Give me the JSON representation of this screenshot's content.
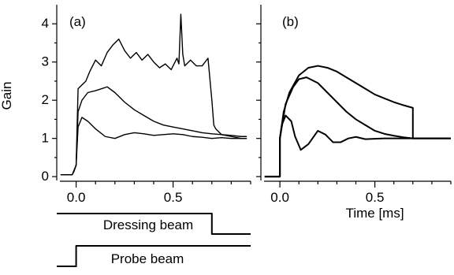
{
  "chart_data": [
    {
      "panel_label": "(a)",
      "type": "line",
      "ylabel": "Gain",
      "xlabel": "",
      "xlim": [
        -0.1,
        0.9
      ],
      "ylim": [
        -0.1,
        4.5
      ],
      "xticks": [
        0.0,
        0.5
      ],
      "xtick_labels": [
        "0.0",
        "0.5"
      ],
      "yticks": [
        0,
        1,
        2,
        3,
        4
      ],
      "ytick_labels": [
        "0",
        "1",
        "2",
        "3",
        "4"
      ],
      "series": [
        {
          "x": [
            -0.08,
            -0.02,
            -0.01,
            0.0,
            0.01,
            0.03,
            0.05,
            0.07,
            0.1,
            0.13,
            0.16,
            0.19,
            0.22,
            0.25,
            0.28,
            0.31,
            0.34,
            0.37,
            0.4,
            0.43,
            0.46,
            0.49,
            0.52,
            0.53,
            0.54,
            0.55,
            0.56,
            0.59,
            0.62,
            0.65,
            0.68,
            0.7,
            0.71,
            0.72,
            0.75,
            0.8,
            0.85,
            0.88
          ],
          "y": [
            0.05,
            0.05,
            0.15,
            0.3,
            2.3,
            2.4,
            2.5,
            2.75,
            3.05,
            2.9,
            3.25,
            3.45,
            3.6,
            3.3,
            3.1,
            3.25,
            3.05,
            3.2,
            3.0,
            2.85,
            2.95,
            2.8,
            3.1,
            2.95,
            4.25,
            3.2,
            2.9,
            3.05,
            2.9,
            2.9,
            3.1,
            2.0,
            1.35,
            1.25,
            1.1,
            1.05,
            1.0,
            1.0
          ]
        },
        {
          "x": [
            -0.08,
            -0.02,
            0.0,
            0.01,
            0.03,
            0.06,
            0.1,
            0.13,
            0.16,
            0.2,
            0.25,
            0.3,
            0.35,
            0.4,
            0.45,
            0.5,
            0.55,
            0.6,
            0.65,
            0.7,
            0.75,
            0.8,
            0.85,
            0.88
          ],
          "y": [
            0.05,
            0.05,
            0.3,
            1.7,
            2.0,
            2.2,
            2.25,
            2.3,
            2.35,
            2.2,
            1.95,
            1.75,
            1.6,
            1.45,
            1.35,
            1.3,
            1.25,
            1.2,
            1.15,
            1.12,
            1.1,
            1.08,
            1.05,
            1.05
          ]
        },
        {
          "x": [
            -0.08,
            -0.02,
            0.0,
            0.01,
            0.03,
            0.06,
            0.1,
            0.15,
            0.2,
            0.25,
            0.3,
            0.35,
            0.4,
            0.45,
            0.5,
            0.55,
            0.6,
            0.65,
            0.7,
            0.75,
            0.8,
            0.85,
            0.88
          ],
          "y": [
            0.05,
            0.05,
            0.3,
            1.3,
            1.55,
            1.45,
            1.25,
            1.05,
            1.0,
            1.1,
            1.15,
            1.12,
            1.08,
            1.1,
            1.12,
            1.1,
            1.05,
            1.03,
            1.0,
            1.02,
            1.0,
            1.0,
            1.0
          ]
        }
      ],
      "timing_lines": [
        {
          "label": "Dressing beam",
          "x": [
            -0.1,
            0.7,
            0.7,
            0.9
          ],
          "level": [
            "high",
            "high",
            "low",
            "low"
          ]
        },
        {
          "label": "Probe beam",
          "x": [
            -0.1,
            0.0,
            0.0,
            0.9
          ],
          "level": [
            "low",
            "low",
            "high",
            "high"
          ]
        }
      ]
    },
    {
      "panel_label": "(b)",
      "type": "line",
      "ylabel": "",
      "xlabel": "Time [ms]",
      "xlim": [
        -0.1,
        0.9
      ],
      "ylim": [
        -0.1,
        4.5
      ],
      "xticks": [
        0.0,
        0.5
      ],
      "xtick_labels": [
        "0.0",
        "0.5"
      ],
      "yticks": [
        0,
        1,
        2,
        3,
        4
      ],
      "ytick_labels": [],
      "series": [
        {
          "x": [
            -0.08,
            0.0,
            0.0,
            0.02,
            0.05,
            0.1,
            0.15,
            0.2,
            0.25,
            0.3,
            0.35,
            0.4,
            0.45,
            0.5,
            0.55,
            0.6,
            0.65,
            0.7,
            0.7,
            0.75,
            0.8,
            0.85,
            0.9
          ],
          "y": [
            0.0,
            0.0,
            1.0,
            1.7,
            2.2,
            2.65,
            2.85,
            2.9,
            2.85,
            2.75,
            2.6,
            2.45,
            2.3,
            2.15,
            2.05,
            1.95,
            1.87,
            1.8,
            1.0,
            1.0,
            1.0,
            1.0,
            1.0
          ]
        },
        {
          "x": [
            -0.08,
            0.0,
            0.0,
            0.03,
            0.07,
            0.1,
            0.14,
            0.2,
            0.25,
            0.3,
            0.35,
            0.4,
            0.45,
            0.5,
            0.55,
            0.6,
            0.65,
            0.7,
            0.75,
            0.8,
            0.9
          ],
          "y": [
            0.0,
            0.0,
            1.0,
            1.9,
            2.35,
            2.55,
            2.6,
            2.45,
            2.2,
            1.95,
            1.7,
            1.5,
            1.35,
            1.2,
            1.12,
            1.07,
            1.03,
            1.0,
            1.0,
            1.0,
            1.0
          ]
        },
        {
          "x": [
            -0.08,
            0.0,
            0.0,
            0.01,
            0.03,
            0.06,
            0.08,
            0.11,
            0.15,
            0.2,
            0.24,
            0.28,
            0.32,
            0.36,
            0.4,
            0.45,
            0.5,
            0.55,
            0.6,
            0.7,
            0.8,
            0.9
          ],
          "y": [
            0.0,
            0.0,
            1.0,
            1.35,
            1.6,
            1.45,
            1.05,
            0.7,
            0.85,
            1.2,
            1.1,
            0.9,
            0.9,
            1.0,
            1.04,
            0.98,
            0.99,
            1.0,
            1.0,
            1.0,
            1.0,
            1.0
          ]
        }
      ]
    }
  ]
}
